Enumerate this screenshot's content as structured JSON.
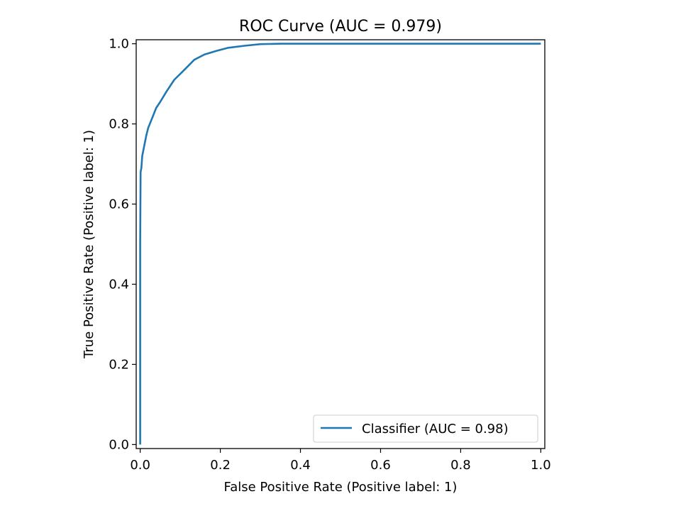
{
  "chart_data": {
    "type": "line",
    "title": "ROC Curve (AUC = 0.979)",
    "xlabel": "False Positive Rate (Positive label: 1)",
    "ylabel": "True Positive Rate (Positive label: 1)",
    "xlim": [
      -0.01,
      1.01
    ],
    "ylim": [
      -0.01,
      1.01
    ],
    "xticks": [
      0.0,
      0.2,
      0.4,
      0.6,
      0.8,
      1.0
    ],
    "xtick_labels": [
      "0.0",
      "0.2",
      "0.4",
      "0.6",
      "0.8",
      "1.0"
    ],
    "yticks": [
      0.0,
      0.2,
      0.4,
      0.6,
      0.8,
      1.0
    ],
    "ytick_labels": [
      "0.0",
      "0.2",
      "0.4",
      "0.6",
      "0.8",
      "1.0"
    ],
    "grid": false,
    "legend_position": "lower-right",
    "series": [
      {
        "name": "Classifier (AUC = 0.98)",
        "color": "#1f77b4",
        "points": [
          [
            0.0,
            0.0
          ],
          [
            0.0,
            0.5
          ],
          [
            0.001,
            0.68
          ],
          [
            0.003,
            0.69
          ],
          [
            0.005,
            0.72
          ],
          [
            0.01,
            0.745
          ],
          [
            0.015,
            0.77
          ],
          [
            0.02,
            0.79
          ],
          [
            0.03,
            0.815
          ],
          [
            0.04,
            0.84
          ],
          [
            0.05,
            0.855
          ],
          [
            0.065,
            0.88
          ],
          [
            0.085,
            0.91
          ],
          [
            0.11,
            0.935
          ],
          [
            0.135,
            0.96
          ],
          [
            0.16,
            0.973
          ],
          [
            0.19,
            0.982
          ],
          [
            0.22,
            0.99
          ],
          [
            0.26,
            0.995
          ],
          [
            0.3,
            0.999
          ],
          [
            0.35,
            1.0
          ],
          [
            0.5,
            1.0
          ],
          [
            0.75,
            1.0
          ],
          [
            1.0,
            1.0
          ]
        ]
      }
    ]
  }
}
